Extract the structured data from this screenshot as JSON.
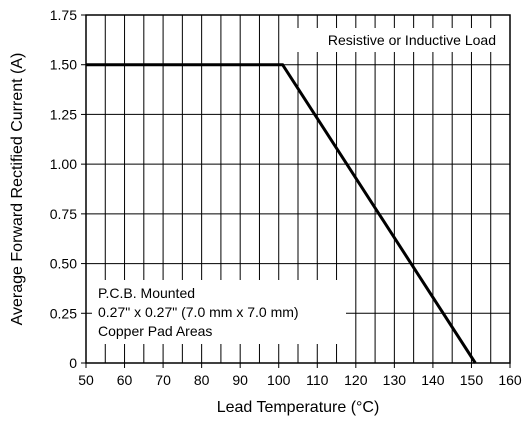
{
  "chart_data": {
    "type": "line",
    "title": "",
    "xlabel": "Lead Temperature (°C)",
    "ylabel": "Average Forward Rectified Current (A)",
    "xlim": [
      50,
      160
    ],
    "ylim": [
      0,
      1.75
    ],
    "x_ticks": [
      50,
      60,
      70,
      80,
      90,
      100,
      110,
      120,
      130,
      140,
      150,
      160
    ],
    "y_ticks": [
      0,
      0.25,
      0.5,
      0.75,
      1.0,
      1.25,
      1.5,
      1.75
    ],
    "x_tick_labels": [
      "50",
      "60",
      "70",
      "80",
      "90",
      "100",
      "110",
      "120",
      "130",
      "140",
      "150",
      "160"
    ],
    "y_tick_labels": [
      "0",
      "0.25",
      "0.50",
      "0.75",
      "1.00",
      "1.25",
      "1.50",
      "1.75"
    ],
    "grid": {
      "vertical_step": 5,
      "horizontal_step": 0.25
    },
    "series": [
      {
        "x": [
          50,
          101,
          151
        ],
        "y": [
          1.5,
          1.5,
          0
        ]
      }
    ],
    "annotations": [
      {
        "text": "Resistive or Inductive Load",
        "placement": "top-right"
      },
      {
        "lines": [
          "P.C.B. Mounted",
          "0.27\" x 0.27\" (7.0 mm x 7.0 mm)",
          "Copper Pad Areas"
        ],
        "placement": "bottom-left"
      }
    ]
  }
}
